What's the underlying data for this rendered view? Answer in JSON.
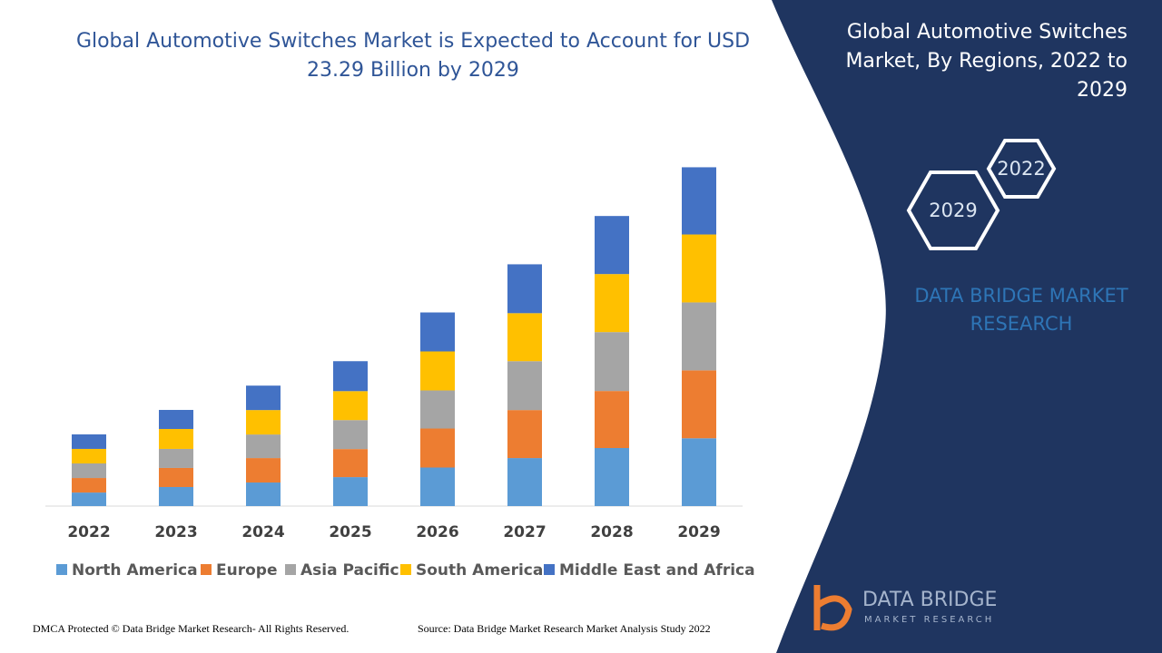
{
  "chart_data": {
    "type": "bar",
    "stacked": true,
    "title": "Global Automotive Switches Market is Expected to Account for USD 23.29 Billion by 2029",
    "categories": [
      "2022",
      "2023",
      "2024",
      "2025",
      "2026",
      "2027",
      "2028",
      "2029"
    ],
    "series": [
      {
        "name": "North America",
        "color": "#5b9bd5",
        "values": [
          0.93,
          1.31,
          1.62,
          1.99,
          2.65,
          3.3,
          3.99,
          4.66
        ]
      },
      {
        "name": "Europe",
        "color": "#ed7d31",
        "values": [
          1.0,
          1.31,
          1.68,
          1.93,
          2.68,
          3.3,
          3.92,
          4.67
        ]
      },
      {
        "name": "Asia Pacific",
        "color": "#a5a5a5",
        "values": [
          1.0,
          1.31,
          1.62,
          1.99,
          2.62,
          3.36,
          4.05,
          4.67
        ]
      },
      {
        "name": "South America",
        "color": "#ffc000",
        "values": [
          1.0,
          1.37,
          1.68,
          1.99,
          2.68,
          3.3,
          3.99,
          4.67
        ]
      },
      {
        "name": "Middle East and Africa",
        "color": "#4472c4",
        "values": [
          1.0,
          1.31,
          1.68,
          2.06,
          2.68,
          3.36,
          3.99,
          4.62
        ]
      }
    ],
    "ylim": [
      0,
      25
    ],
    "legend": "bottom"
  },
  "panel": {
    "title": "Global Automotive Switches Market, By Regions, 2022 to 2029",
    "hexagons": [
      "2022",
      "2029"
    ],
    "brand": "DATA BRIDGE MARKET RESEARCH"
  },
  "logo": {
    "name": "DATA BRIDGE",
    "tagline": "MARKET RESEARCH"
  },
  "footer": {
    "left": "DMCA Protected © Data Bridge Market Research- All Rights Reserved.",
    "right": "Source: Data Bridge Market Research Market Analysis Study 2022"
  }
}
